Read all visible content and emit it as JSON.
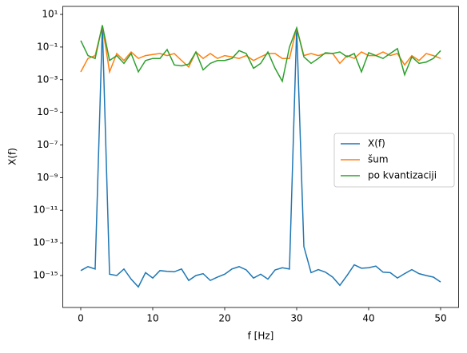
{
  "chart_data": {
    "type": "line",
    "x_label": "f [Hz]",
    "y_label": "X(f)",
    "log_y": true,
    "legend": "center right",
    "x": [
      0,
      1,
      2,
      3,
      4,
      5,
      6,
      7,
      8,
      9,
      10,
      11,
      12,
      13,
      14,
      15,
      16,
      17,
      18,
      19,
      20,
      21,
      22,
      23,
      24,
      25,
      26,
      27,
      28,
      29,
      30,
      31,
      32,
      33,
      34,
      35,
      36,
      37,
      38,
      39,
      40,
      41,
      42,
      43,
      44,
      45,
      46,
      47,
      48,
      49,
      50
    ],
    "series": [
      {
        "name": "X(f)",
        "color": "#1f77b4",
        "values": [
          2e-15,
          3.5e-15,
          2.5e-15,
          2,
          1.2e-15,
          1e-15,
          2.5e-15,
          6e-16,
          2e-16,
          1.5e-15,
          7e-16,
          2e-15,
          1.8e-15,
          1.7e-15,
          2.5e-15,
          5e-16,
          1e-15,
          1.3e-15,
          5e-16,
          8e-16,
          1.2e-15,
          2.5e-15,
          3.5e-15,
          2.2e-15,
          7e-16,
          1.2e-15,
          6e-16,
          2.2e-15,
          3e-15,
          2.5e-15,
          1.5,
          6e-14,
          1.5e-15,
          2.3e-15,
          1.6e-15,
          8e-16,
          2.5e-16,
          1e-15,
          4.5e-15,
          2.8e-15,
          3e-15,
          3.8e-15,
          1.6e-15,
          1.5e-15,
          7e-16,
          1.3e-15,
          2.3e-15,
          1.3e-15,
          1e-15,
          8e-16,
          4e-16
        ]
      },
      {
        "name": "šum",
        "color": "#ff7f0e",
        "values": [
          0.003,
          0.02,
          0.03,
          2,
          0.003,
          0.04,
          0.015,
          0.05,
          0.02,
          0.03,
          0.035,
          0.04,
          0.03,
          0.04,
          0.015,
          0.006,
          0.05,
          0.02,
          0.04,
          0.02,
          0.03,
          0.025,
          0.02,
          0.03,
          0.015,
          0.025,
          0.04,
          0.04,
          0.02,
          0.02,
          1.5,
          0.03,
          0.04,
          0.03,
          0.04,
          0.04,
          0.01,
          0.03,
          0.02,
          0.05,
          0.03,
          0.03,
          0.05,
          0.03,
          0.04,
          0.008,
          0.03,
          0.015,
          0.04,
          0.03,
          0.02
        ]
      },
      {
        "name": "po kvantizaciji",
        "color": "#2ca02c",
        "values": [
          0.25,
          0.03,
          0.02,
          2.2,
          0.015,
          0.03,
          0.01,
          0.04,
          0.003,
          0.015,
          0.02,
          0.02,
          0.07,
          0.008,
          0.007,
          0.009,
          0.05,
          0.004,
          0.01,
          0.015,
          0.015,
          0.02,
          0.06,
          0.04,
          0.005,
          0.01,
          0.05,
          0.005,
          0.0008,
          0.1,
          1.5,
          0.025,
          0.01,
          0.02,
          0.045,
          0.04,
          0.05,
          0.025,
          0.04,
          0.003,
          0.045,
          0.03,
          0.02,
          0.04,
          0.08,
          0.002,
          0.025,
          0.01,
          0.012,
          0.02,
          0.06
        ]
      }
    ],
    "xlim": [
      -2.5,
      52.5
    ],
    "xticks": [
      0,
      10,
      20,
      30,
      40,
      50
    ],
    "ylim": [
      1.1e-17,
      31
    ],
    "yticks": [
      {
        "value": 10,
        "label": "10¹"
      },
      {
        "value": 0.1,
        "label": "10⁻¹"
      },
      {
        "value": 0.001,
        "label": "10⁻³"
      },
      {
        "value": 1e-05,
        "label": "10⁻⁵"
      },
      {
        "value": 1e-07,
        "label": "10⁻⁷"
      },
      {
        "value": 1e-09,
        "label": "10⁻⁹"
      },
      {
        "value": 1e-11,
        "label": "10⁻¹¹"
      },
      {
        "value": 1e-13,
        "label": "10⁻¹³"
      },
      {
        "value": 1e-15,
        "label": "10⁻¹⁵"
      }
    ]
  }
}
